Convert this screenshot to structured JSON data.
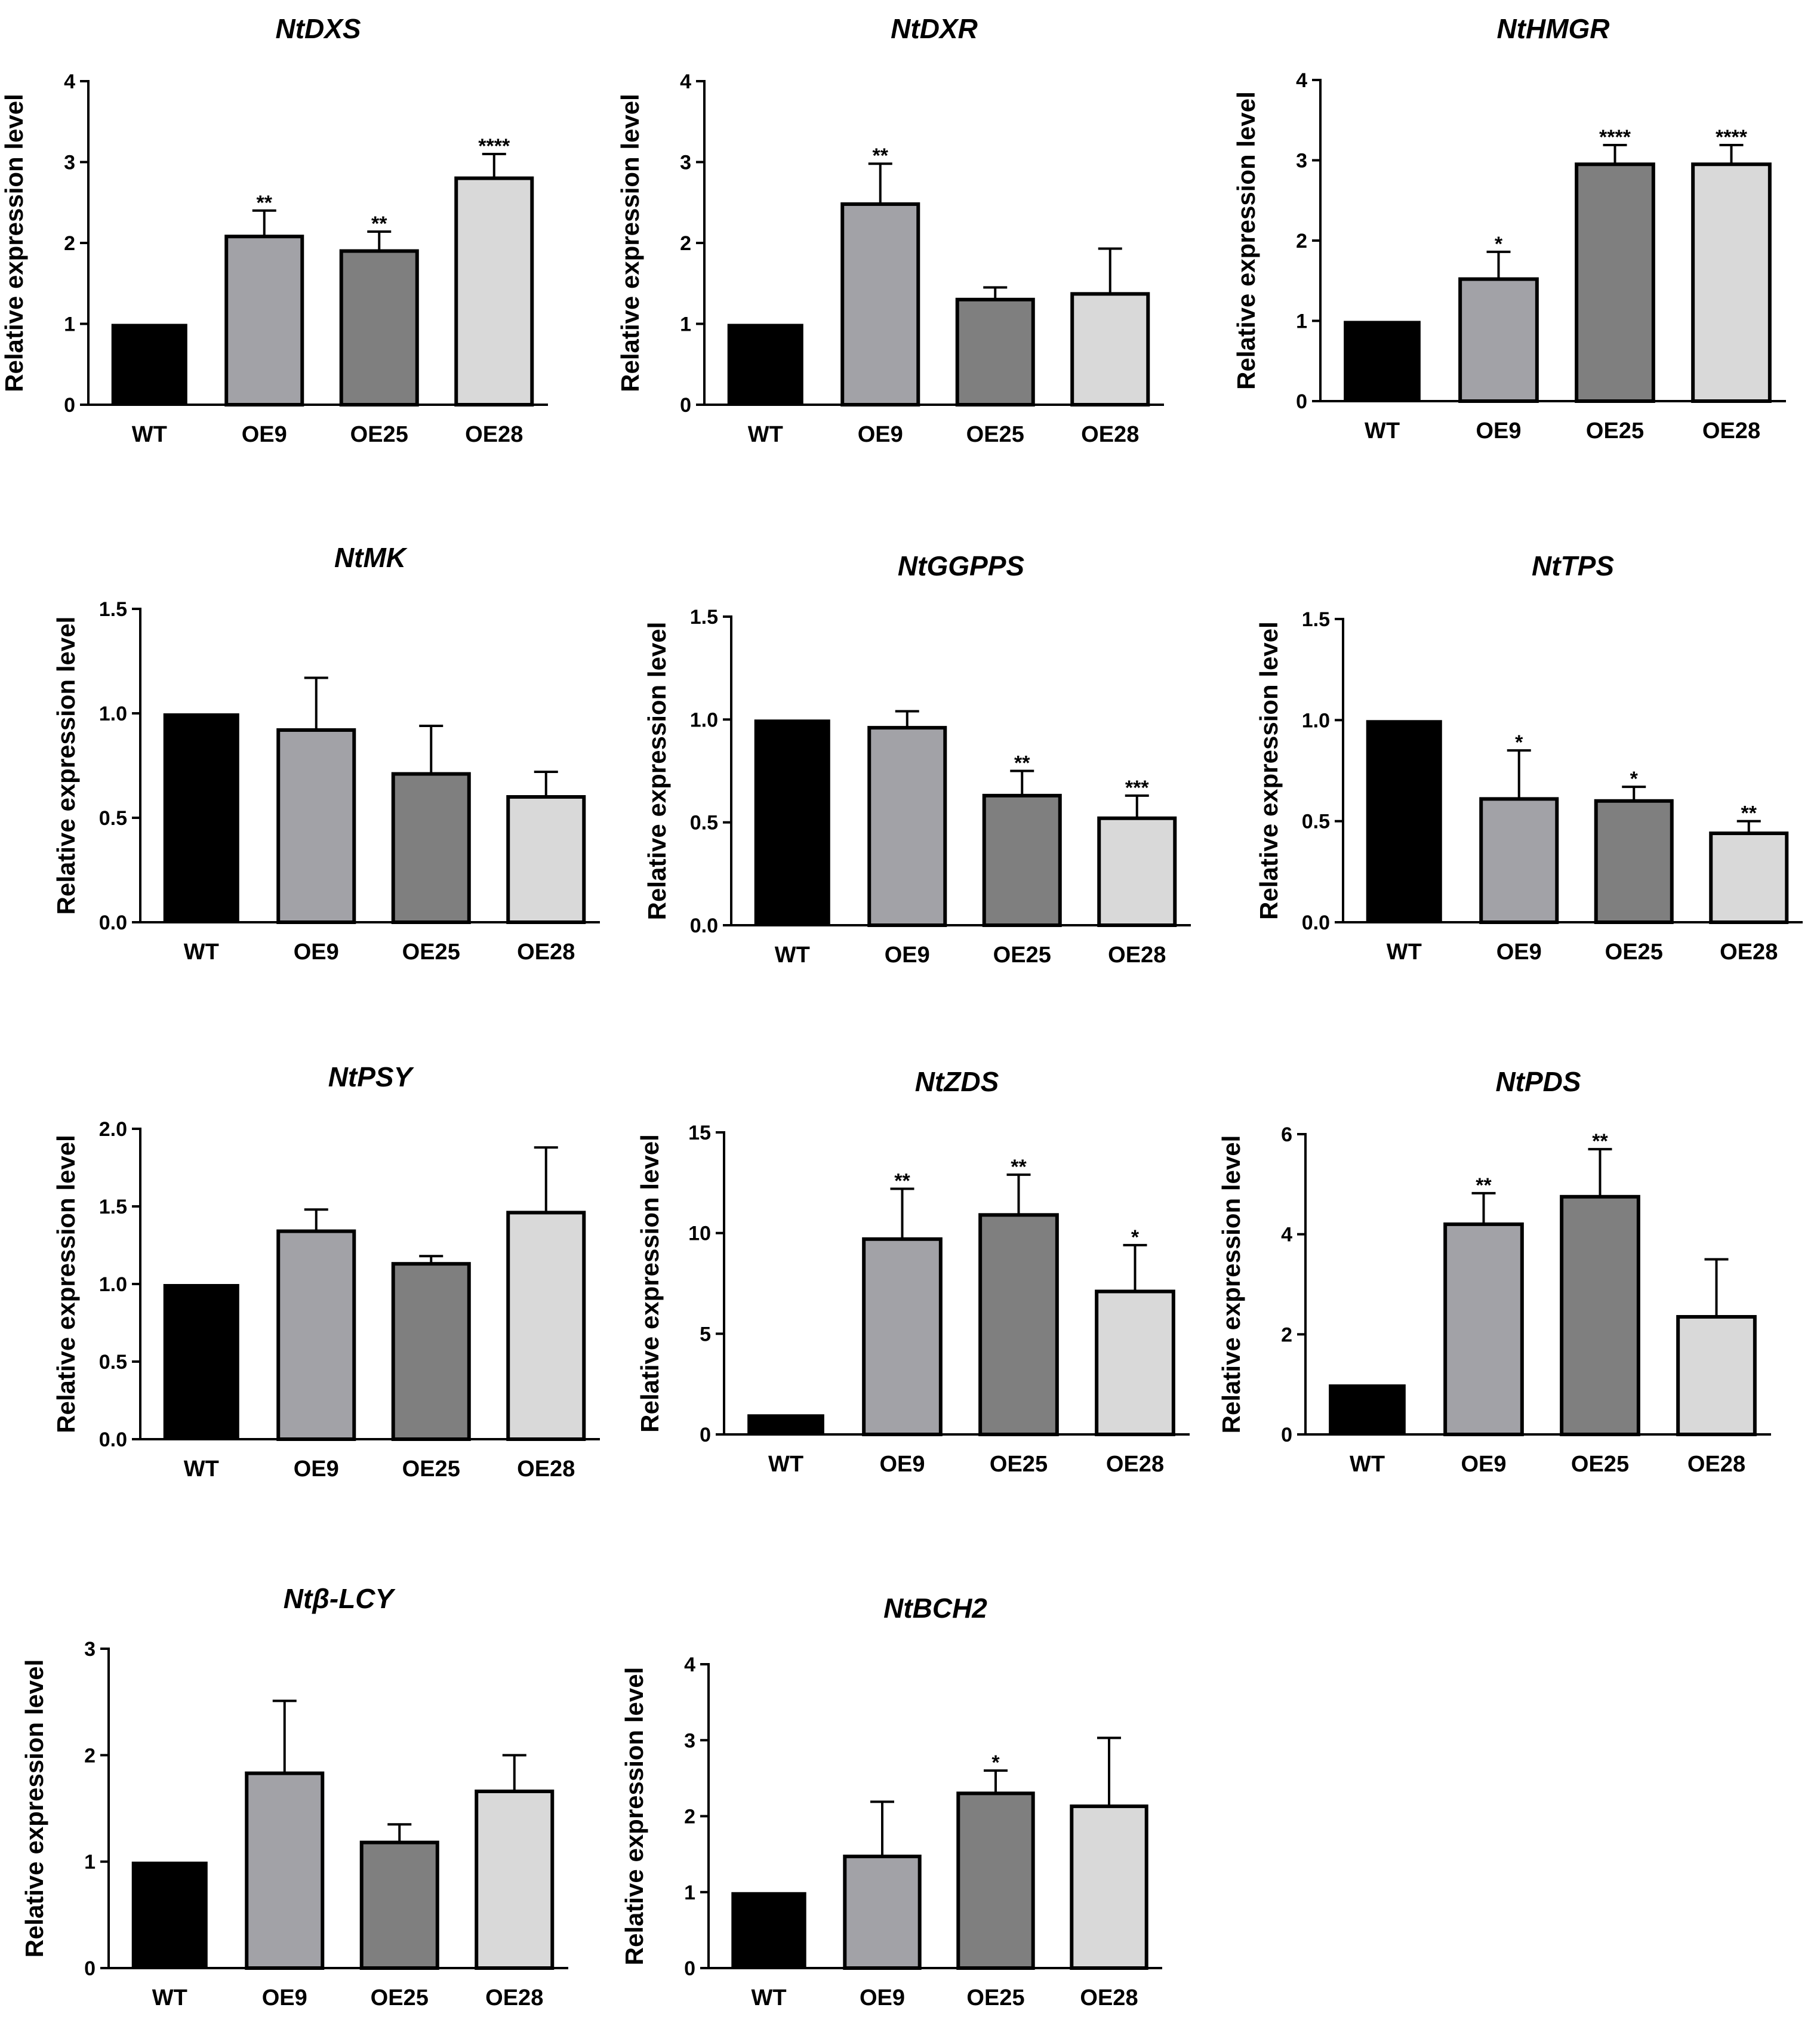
{
  "colors": {
    "WT": "#000000",
    "OE9": "#a2a2a7",
    "OE25": "#7f7f7f",
    "OE28": "#d9d9d9",
    "stroke": "#000000"
  },
  "chart_data": [
    {
      "type": "bar",
      "title": "NtDXS",
      "ylabel": "Relative expression level",
      "categories": [
        "WT",
        "OE9",
        "OE25",
        "OE28"
      ],
      "values": [
        1.0,
        2.08,
        1.9,
        2.8
      ],
      "errors": [
        0,
        0.32,
        0.24,
        0.3
      ],
      "significance": [
        "",
        "**",
        "**",
        "****"
      ],
      "ylim": [
        0,
        4
      ],
      "yticks": [
        "0",
        "1",
        "2",
        "3",
        "4"
      ]
    },
    {
      "type": "bar",
      "title": "NtDXR",
      "ylabel": "Relative expression level",
      "categories": [
        "WT",
        "OE9",
        "OE25",
        "OE28"
      ],
      "values": [
        1.0,
        2.48,
        1.3,
        1.37
      ],
      "errors": [
        0,
        0.5,
        0.15,
        0.56
      ],
      "significance": [
        "",
        "**",
        "",
        ""
      ],
      "ylim": [
        0,
        4
      ],
      "yticks": [
        "0",
        "1",
        "2",
        "3",
        "4"
      ]
    },
    {
      "type": "bar",
      "title": "NtHMGR",
      "ylabel": "Relative expression level",
      "categories": [
        "WT",
        "OE9",
        "OE25",
        "OE28"
      ],
      "values": [
        1.0,
        1.52,
        2.95,
        2.95
      ],
      "errors": [
        0,
        0.34,
        0.24,
        0.24
      ],
      "significance": [
        "",
        "*",
        "****",
        "****"
      ],
      "ylim": [
        0,
        4
      ],
      "yticks": [
        "0",
        "1",
        "2",
        "3",
        "4"
      ]
    },
    {
      "type": "bar",
      "title": "NtMK",
      "ylabel": "Relative expression level",
      "categories": [
        "WT",
        "OE9",
        "OE25",
        "OE28"
      ],
      "values": [
        1.0,
        0.92,
        0.71,
        0.6
      ],
      "errors": [
        0,
        0.25,
        0.23,
        0.12
      ],
      "significance": [
        "",
        "",
        "",
        ""
      ],
      "ylim": [
        0,
        1.5
      ],
      "yticks": [
        "0.0",
        "0.5",
        "1.0",
        "1.5"
      ]
    },
    {
      "type": "bar",
      "title": "NtGGPPS",
      "ylabel": "Relative expression level",
      "categories": [
        "WT",
        "OE9",
        "OE25",
        "OE28"
      ],
      "values": [
        1.0,
        0.96,
        0.63,
        0.52
      ],
      "errors": [
        0,
        0.08,
        0.12,
        0.11
      ],
      "significance": [
        "",
        "",
        "**",
        "***"
      ],
      "ylim": [
        0,
        1.5
      ],
      "yticks": [
        "0.0",
        "0.5",
        "1.0",
        "1.5"
      ]
    },
    {
      "type": "bar",
      "title": "NtTPS",
      "ylabel": "Relative expression level",
      "categories": [
        "WT",
        "OE9",
        "OE25",
        "OE28"
      ],
      "values": [
        1.0,
        0.61,
        0.6,
        0.44
      ],
      "errors": [
        0,
        0.24,
        0.07,
        0.06
      ],
      "significance": [
        "",
        "*",
        "*",
        "**"
      ],
      "ylim": [
        0,
        1.5
      ],
      "yticks": [
        "0.0",
        "0.5",
        "1.0",
        "1.5"
      ]
    },
    {
      "type": "bar",
      "title": "NtPSY",
      "ylabel": "Relative expression level",
      "categories": [
        "WT",
        "OE9",
        "OE25",
        "OE28"
      ],
      "values": [
        1.0,
        1.34,
        1.13,
        1.46
      ],
      "errors": [
        0,
        0.14,
        0.05,
        0.42
      ],
      "significance": [
        "",
        "",
        "",
        ""
      ],
      "ylim": [
        0,
        2.0
      ],
      "yticks": [
        "0.0",
        "0.5",
        "1.0",
        "1.5",
        "2.0"
      ]
    },
    {
      "type": "bar",
      "title": "NtZDS",
      "ylabel": "Relative expression level",
      "categories": [
        "WT",
        "OE9",
        "OE25",
        "OE28"
      ],
      "values": [
        1.0,
        9.7,
        10.9,
        7.1
      ],
      "errors": [
        0,
        2.5,
        2.0,
        2.3
      ],
      "significance": [
        "",
        "**",
        "**",
        "*"
      ],
      "ylim": [
        0,
        15
      ],
      "yticks": [
        "0",
        "5",
        "10",
        "15"
      ]
    },
    {
      "type": "bar",
      "title": "NtPDS",
      "ylabel": "Relative expression level",
      "categories": [
        "WT",
        "OE9",
        "OE25",
        "OE28"
      ],
      "values": [
        1.0,
        4.2,
        4.75,
        2.35
      ],
      "errors": [
        0,
        0.62,
        0.95,
        1.15
      ],
      "significance": [
        "",
        "**",
        "**",
        ""
      ],
      "ylim": [
        0,
        6
      ],
      "yticks": [
        "0",
        "2",
        "4",
        "6"
      ]
    },
    {
      "type": "bar",
      "title": "Ntβ-LCY",
      "ylabel": "Relative expression level",
      "categories": [
        "WT",
        "OE9",
        "OE25",
        "OE28"
      ],
      "values": [
        1.0,
        1.83,
        1.18,
        1.66
      ],
      "errors": [
        0,
        0.68,
        0.17,
        0.34
      ],
      "significance": [
        "",
        "",
        "",
        ""
      ],
      "ylim": [
        0,
        3
      ],
      "yticks": [
        "0",
        "1",
        "2",
        "3"
      ]
    },
    {
      "type": "bar",
      "title": "NtBCH2",
      "ylabel": "Relative expression level",
      "categories": [
        "WT",
        "OE9",
        "OE25",
        "OE28"
      ],
      "values": [
        1.0,
        1.47,
        2.3,
        2.13
      ],
      "errors": [
        0,
        0.72,
        0.3,
        0.9
      ],
      "significance": [
        "",
        "",
        "*",
        ""
      ],
      "ylim": [
        0,
        4
      ],
      "yticks": [
        "0",
        "1",
        "2",
        "3",
        "4"
      ]
    }
  ]
}
